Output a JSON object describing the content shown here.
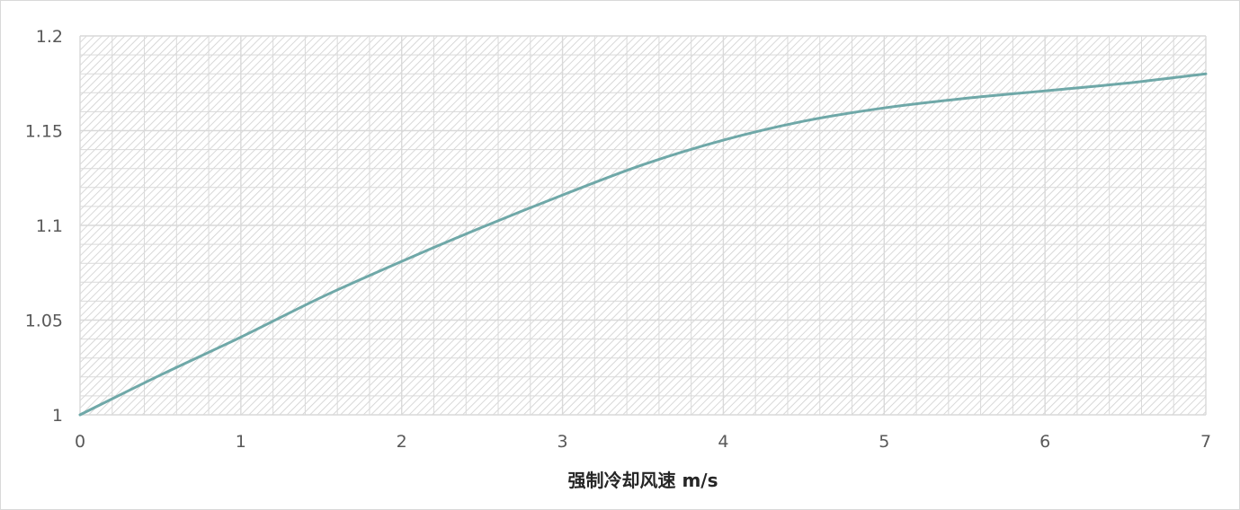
{
  "chart_data": {
    "type": "line",
    "title": "",
    "xlabel": "强制冷却风速 m/s",
    "ylabel": "",
    "xlim": [
      0,
      7
    ],
    "ylim": [
      1,
      1.2
    ],
    "x_ticks": [
      "0",
      "1",
      "2",
      "3",
      "4",
      "5",
      "6",
      "7"
    ],
    "y_ticks": [
      "1",
      "1.05",
      "1.1",
      "1.15",
      "1.2"
    ],
    "grid": true,
    "legend": "none",
    "series": [
      {
        "color": "#6fa8a8",
        "smooth": true,
        "x": [
          0,
          0.5,
          1,
          1.5,
          2,
          2.5,
          3,
          3.5,
          4,
          4.5,
          5,
          5.5,
          6,
          6.5,
          7
        ],
        "y": [
          1.0,
          1.021,
          1.041,
          1.062,
          1.081,
          1.099,
          1.116,
          1.132,
          1.145,
          1.155,
          1.162,
          1.167,
          1.171,
          1.175,
          1.18
        ]
      }
    ]
  },
  "colors": {
    "grid": "#d9d9d9",
    "border": "#d9d9d9",
    "tick_text": "#595959",
    "axis_title": "#262626"
  }
}
